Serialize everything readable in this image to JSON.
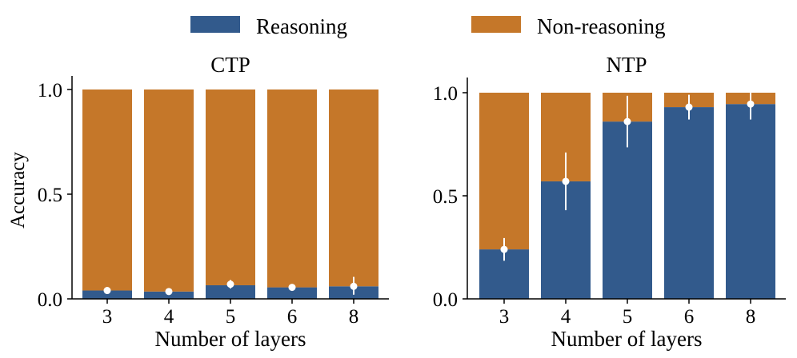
{
  "colors": {
    "reasoning": "#325a8c",
    "non_reasoning": "#c57729",
    "error_marker": "#ffffff",
    "axis": "#000000"
  },
  "legend": {
    "reasoning_label": "Reasoning",
    "non_reasoning_label": "Non-reasoning"
  },
  "chart_data": [
    {
      "type": "bar",
      "stacked": true,
      "title": "CTP",
      "xlabel": "Number of layers",
      "ylabel": "Accuracy",
      "categories": [
        "3",
        "4",
        "5",
        "6",
        "8"
      ],
      "ylim": [
        0,
        1.0
      ],
      "yticks": [
        0.0,
        0.5,
        1.0
      ],
      "ytick_labels": [
        "0.0",
        "0.5",
        "1.0"
      ],
      "series": [
        {
          "name": "Reasoning",
          "values": [
            0.04,
            0.035,
            0.065,
            0.055,
            0.06
          ]
        },
        {
          "name": "Non-reasoning",
          "values": [
            0.96,
            0.965,
            0.935,
            0.945,
            0.94
          ]
        }
      ],
      "error_points": {
        "mean": [
          0.04,
          0.035,
          0.07,
          0.055,
          0.06
        ],
        "lower": [
          0.025,
          0.03,
          0.05,
          0.05,
          0.02
        ],
        "upper": [
          0.055,
          0.04,
          0.09,
          0.06,
          0.105
        ]
      }
    },
    {
      "type": "bar",
      "stacked": true,
      "title": "NTP",
      "xlabel": "Number of layers",
      "ylabel": "",
      "categories": [
        "3",
        "4",
        "5",
        "6",
        "8"
      ],
      "ylim": [
        0,
        1.0
      ],
      "yticks": [
        0.0,
        0.5,
        1.0
      ],
      "ytick_labels": [
        "0.0",
        "0.5",
        "1.0"
      ],
      "series": [
        {
          "name": "Reasoning",
          "values": [
            0.24,
            0.57,
            0.86,
            0.93,
            0.945
          ]
        },
        {
          "name": "Non-reasoning",
          "values": [
            0.76,
            0.43,
            0.14,
            0.07,
            0.055
          ]
        }
      ],
      "error_points": {
        "mean": [
          0.24,
          0.57,
          0.86,
          0.93,
          0.945
        ],
        "lower": [
          0.185,
          0.43,
          0.735,
          0.87,
          0.87
        ],
        "upper": [
          0.295,
          0.71,
          0.985,
          0.99,
          1.0
        ]
      }
    }
  ]
}
